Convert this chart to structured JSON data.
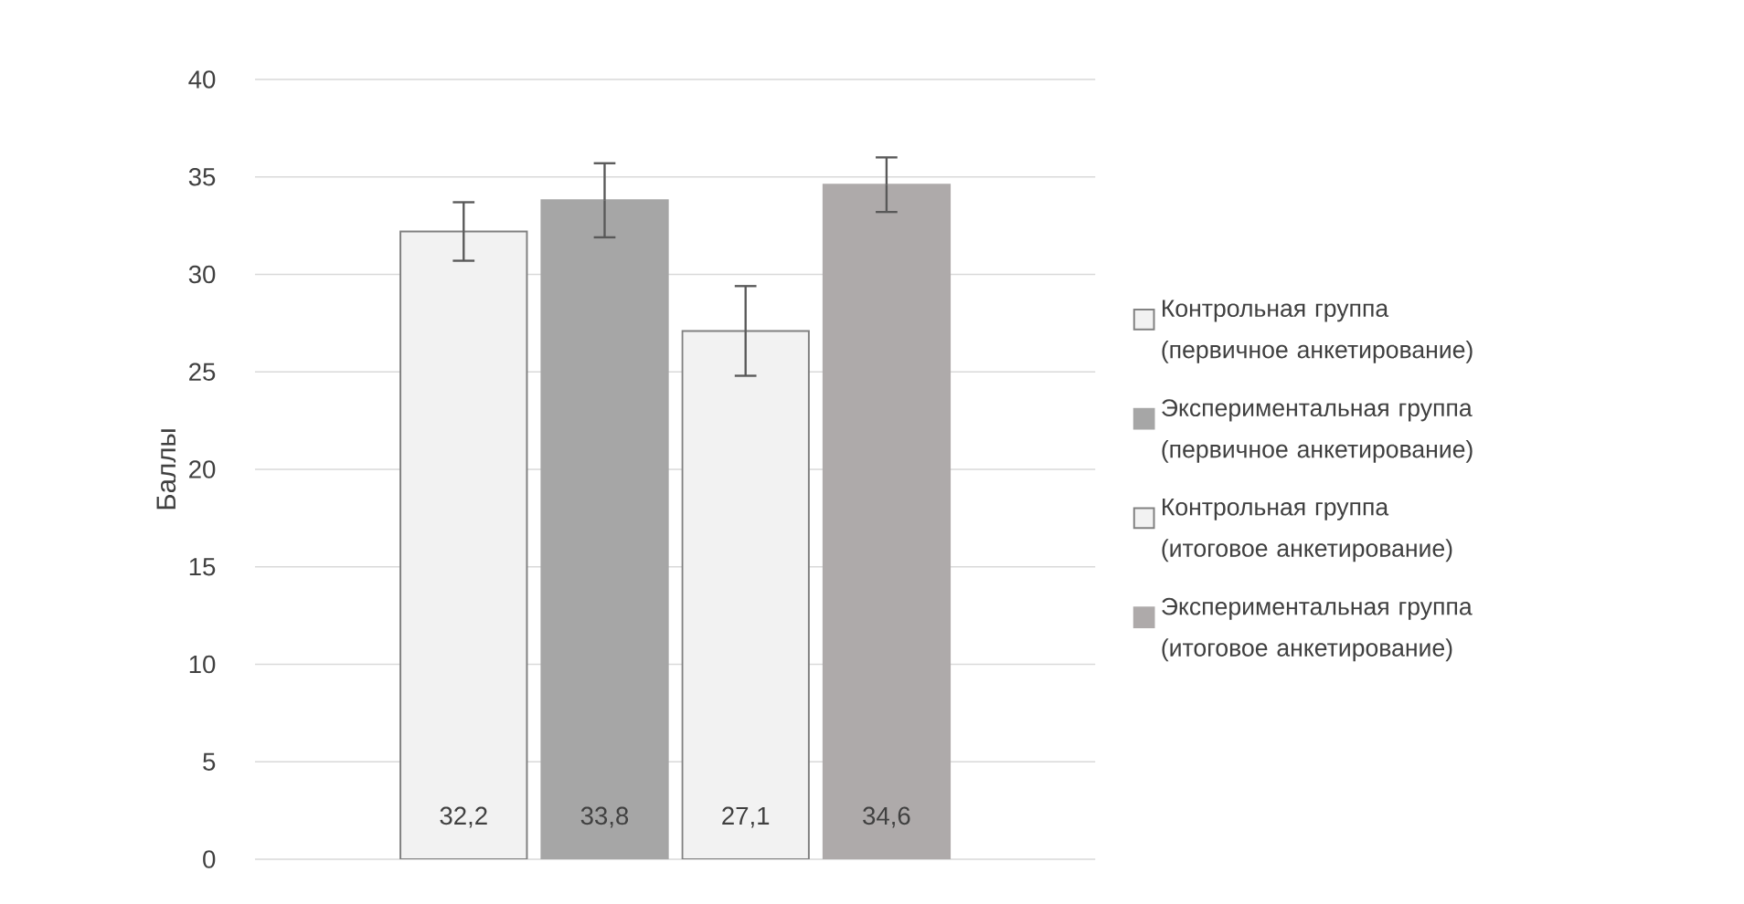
{
  "chart_data": {
    "type": "bar",
    "ylabel": "Баллы",
    "categories": [
      null
    ],
    "ylim": [
      0,
      40
    ],
    "yticks": [
      0,
      5,
      10,
      15,
      20,
      25,
      30,
      35,
      40
    ],
    "grid": "y",
    "legend": "right",
    "series": [
      {
        "name": "Контрольная группа (первичное анкетирование)",
        "color": "#f2f2f2",
        "values": [
          32.2
        ],
        "errors": [
          1.5
        ],
        "value_labels": [
          "32,2"
        ]
      },
      {
        "name": "Экспериментальная группа (первичное анкетирование)",
        "color": "#a6a6a6",
        "values": [
          33.8
        ],
        "errors": [
          1.9
        ],
        "value_labels": [
          "33,8"
        ]
      },
      {
        "name": "Контрольная группа (итоговое анкетирование)",
        "color": "#f2f2f2",
        "values": [
          27.1
        ],
        "errors": [
          2.3
        ],
        "value_labels": [
          "27,1"
        ]
      },
      {
        "name": "Экспериментальная группа (итоговое анкетирование)",
        "color": "#aeaaaa",
        "values": [
          34.6
        ],
        "errors": [
          1.4
        ],
        "value_labels": [
          "34,6"
        ]
      }
    ]
  }
}
